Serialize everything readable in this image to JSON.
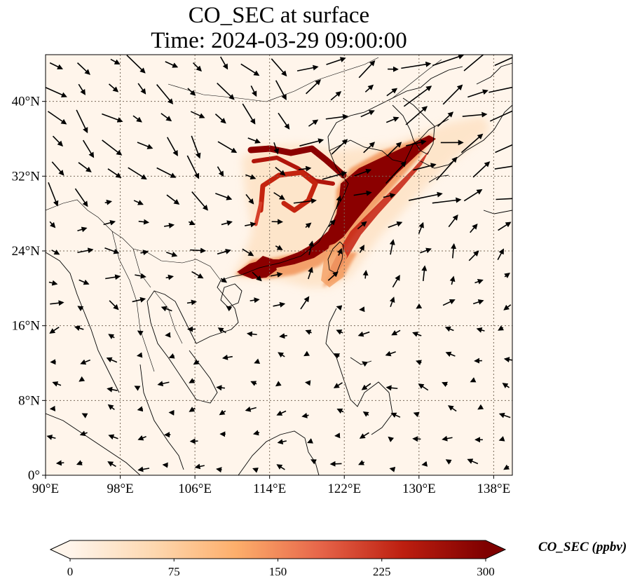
{
  "figure": {
    "title_line1": "CO_SEC at surface",
    "title_line2": "Time: 2024-03-29 09:00:00"
  },
  "map": {
    "lon_range": [
      90,
      140
    ],
    "lat_range": [
      0,
      45
    ],
    "lon_ticks": [
      {
        "value": 90,
        "label": "90°E"
      },
      {
        "value": 98,
        "label": "98°E"
      },
      {
        "value": 106,
        "label": "106°E"
      },
      {
        "value": 114,
        "label": "114°E"
      },
      {
        "value": 122,
        "label": "122°E"
      },
      {
        "value": 130,
        "label": "130°E"
      },
      {
        "value": 138,
        "label": "138°E"
      }
    ],
    "lat_ticks": [
      {
        "value": 0,
        "label": "0°"
      },
      {
        "value": 8,
        "label": "8°N"
      },
      {
        "value": 16,
        "label": "16°N"
      },
      {
        "value": 24,
        "label": "24°N"
      },
      {
        "value": 32,
        "label": "32°N"
      },
      {
        "value": 40,
        "label": "40°N"
      }
    ],
    "gridlines": "dotted",
    "background_color": "#fff5eb"
  },
  "colorbar": {
    "label": "CO_SEC (ppbv)",
    "min": 0,
    "max": 300,
    "extend": "both",
    "colormap": "OrRd",
    "ticks": [
      {
        "value": 0,
        "label": "0"
      },
      {
        "value": 75,
        "label": "75"
      },
      {
        "value": 150,
        "label": "150"
      },
      {
        "value": 225,
        "label": "225"
      },
      {
        "value": 300,
        "label": "300"
      }
    ],
    "stops": [
      "#fff5eb",
      "#fdd8b0",
      "#fdae6b",
      "#e7664a",
      "#bd1f10",
      "#7f0000"
    ]
  },
  "plume": {
    "core_color": "#7f0000",
    "edge_color": "#fdae6b"
  }
}
